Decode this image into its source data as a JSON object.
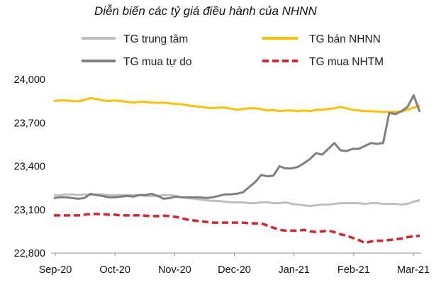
{
  "chart_data": {
    "type": "line",
    "title": "Diễn biến các tỷ giá điều hành của NHNN",
    "xlabel": "",
    "ylabel": "",
    "ylim": [
      22800,
      24000
    ],
    "yticks": [
      "24,000",
      "23,700",
      "23,400",
      "23,100",
      "22,800"
    ],
    "ytick_values": [
      24000,
      23700,
      23400,
      23100,
      22800
    ],
    "xticks": [
      "Sep-20",
      "Oct-20",
      "Nov-20",
      "Dec-20",
      "Jan-21",
      "Feb-21",
      "Mar-21"
    ],
    "grid": false,
    "legend_position": "top",
    "x": [
      0,
      3,
      6,
      9,
      12,
      15,
      18,
      21,
      24,
      27,
      30,
      33,
      36,
      39,
      42,
      45,
      48,
      51,
      54,
      57,
      60,
      63,
      66,
      69,
      72,
      75,
      78,
      81,
      84,
      87,
      90,
      93,
      96,
      99,
      102,
      105,
      108,
      111,
      114,
      117,
      120,
      123,
      126,
      129,
      132,
      135,
      138,
      141,
      144,
      147,
      150,
      153,
      156,
      159,
      162,
      165,
      168,
      171,
      174,
      177,
      180
    ],
    "series": [
      {
        "name": "TG trung tâm",
        "color": "#bfbfbf",
        "style": "solid",
        "values": [
          23200,
          23200,
          23205,
          23205,
          23200,
          23205,
          23200,
          23205,
          23205,
          23200,
          23200,
          23200,
          23200,
          23200,
          23200,
          23195,
          23195,
          23195,
          23200,
          23200,
          23195,
          23185,
          23180,
          23175,
          23170,
          23165,
          23160,
          23160,
          23155,
          23150,
          23150,
          23150,
          23145,
          23145,
          23150,
          23150,
          23145,
          23145,
          23150,
          23140,
          23135,
          23130,
          23125,
          23130,
          23135,
          23135,
          23140,
          23145,
          23145,
          23145,
          23145,
          23140,
          23145,
          23145,
          23140,
          23140,
          23140,
          23135,
          23140,
          23155,
          23165
        ]
      },
      {
        "name": "TG bán NHNN",
        "color": "#ffc000",
        "style": "solid",
        "values": [
          23850,
          23855,
          23855,
          23850,
          23848,
          23858,
          23870,
          23865,
          23855,
          23850,
          23855,
          23850,
          23845,
          23840,
          23845,
          23845,
          23840,
          23838,
          23840,
          23835,
          23830,
          23828,
          23820,
          23815,
          23810,
          23805,
          23800,
          23805,
          23805,
          23798,
          23790,
          23795,
          23800,
          23800,
          23795,
          23785,
          23790,
          23780,
          23785,
          23785,
          23780,
          23785,
          23780,
          23790,
          23790,
          23795,
          23800,
          23810,
          23800,
          23790,
          23785,
          23780,
          23780,
          23778,
          23775,
          23775,
          23775,
          23778,
          23790,
          23805,
          23820
        ]
      },
      {
        "name": "TG mua tự do",
        "color": "#7f7f7f",
        "style": "solid",
        "values": [
          23180,
          23185,
          23185,
          23180,
          23175,
          23180,
          23210,
          23200,
          23195,
          23185,
          23185,
          23190,
          23195,
          23190,
          23200,
          23200,
          23210,
          23195,
          23175,
          23180,
          23190,
          23185,
          23185,
          23185,
          23185,
          23180,
          23185,
          23195,
          23205,
          23205,
          23210,
          23220,
          23255,
          23290,
          23340,
          23330,
          23335,
          23400,
          23385,
          23385,
          23395,
          23420,
          23450,
          23490,
          23480,
          23520,
          23560,
          23510,
          23505,
          23520,
          23520,
          23540,
          23560,
          23555,
          23560,
          23770,
          23760,
          23780,
          23810,
          23890,
          23775
        ]
      },
      {
        "name": "TG mua NHTM",
        "color": "#e0202b",
        "style": "dashed",
        "values": [
          23060,
          23060,
          23060,
          23060,
          23060,
          23065,
          23070,
          23070,
          23068,
          23065,
          23065,
          23060,
          23060,
          23060,
          23060,
          23058,
          23055,
          23055,
          23058,
          23055,
          23050,
          23040,
          23030,
          23025,
          23020,
          23015,
          23010,
          23010,
          23010,
          23010,
          23010,
          23010,
          23005,
          23005,
          23005,
          22990,
          22975,
          22960,
          22955,
          22955,
          22955,
          22960,
          22950,
          22945,
          22950,
          22955,
          22945,
          22930,
          22920,
          22905,
          22890,
          22870,
          22880,
          22885,
          22885,
          22890,
          22895,
          22900,
          22910,
          22915,
          22920
        ]
      }
    ]
  }
}
